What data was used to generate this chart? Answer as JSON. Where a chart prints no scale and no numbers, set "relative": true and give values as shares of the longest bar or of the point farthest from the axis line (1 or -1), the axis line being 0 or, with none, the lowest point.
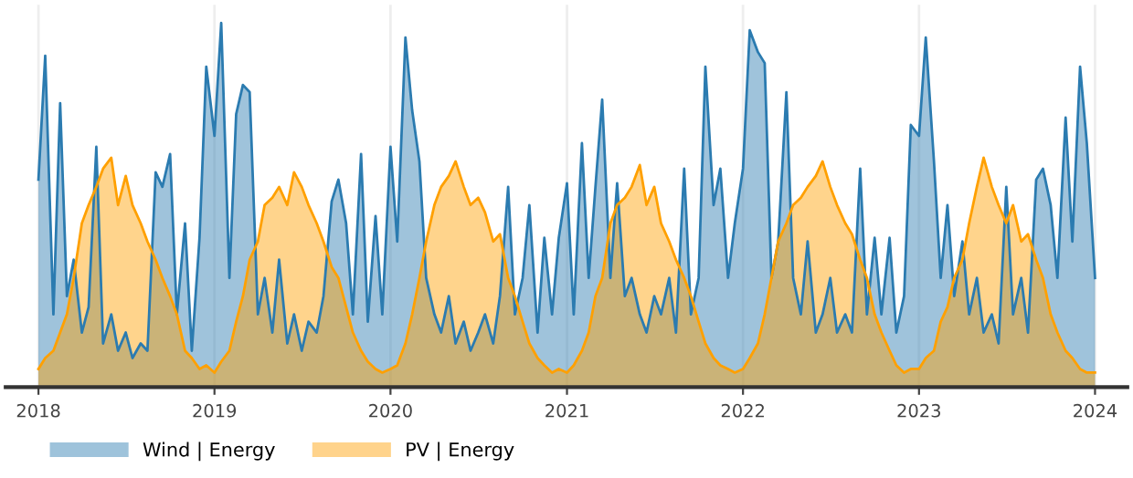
{
  "chart_data": {
    "type": "area",
    "relative": true,
    "x": [
      "2018-01-01",
      "2018-01-15",
      "2018-02-01",
      "2018-02-15",
      "2018-03-01",
      "2018-03-15",
      "2018-04-01",
      "2018-04-15",
      "2018-05-01",
      "2018-05-15",
      "2018-06-01",
      "2018-06-15",
      "2018-07-01",
      "2018-07-15",
      "2018-08-01",
      "2018-08-15",
      "2018-09-01",
      "2018-09-15",
      "2018-10-01",
      "2018-10-15",
      "2018-11-01",
      "2018-11-15",
      "2018-12-01",
      "2018-12-15",
      "2019-01-01",
      "2019-01-15",
      "2019-02-01",
      "2019-02-15",
      "2019-03-01",
      "2019-03-15",
      "2019-04-01",
      "2019-04-15",
      "2019-05-01",
      "2019-05-15",
      "2019-06-01",
      "2019-06-15",
      "2019-07-01",
      "2019-07-15",
      "2019-08-01",
      "2019-08-15",
      "2019-09-01",
      "2019-09-15",
      "2019-10-01",
      "2019-10-15",
      "2019-11-01",
      "2019-11-15",
      "2019-12-01",
      "2019-12-15",
      "2020-01-01",
      "2020-01-15",
      "2020-02-01",
      "2020-02-15",
      "2020-03-01",
      "2020-03-15",
      "2020-04-01",
      "2020-04-15",
      "2020-05-01",
      "2020-05-15",
      "2020-06-01",
      "2020-06-15",
      "2020-07-01",
      "2020-07-15",
      "2020-08-01",
      "2020-08-15",
      "2020-09-01",
      "2020-09-15",
      "2020-10-01",
      "2020-10-15",
      "2020-11-01",
      "2020-11-15",
      "2020-12-01",
      "2020-12-15",
      "2021-01-01",
      "2021-01-15",
      "2021-02-01",
      "2021-02-15",
      "2021-03-01",
      "2021-03-15",
      "2021-04-01",
      "2021-04-15",
      "2021-05-01",
      "2021-05-15",
      "2021-06-01",
      "2021-06-15",
      "2021-07-01",
      "2021-07-15",
      "2021-08-01",
      "2021-08-15",
      "2021-09-01",
      "2021-09-15",
      "2021-10-01",
      "2021-10-15",
      "2021-11-01",
      "2021-11-15",
      "2021-12-01",
      "2021-12-15",
      "2022-01-01",
      "2022-01-15",
      "2022-02-01",
      "2022-02-15",
      "2022-03-01",
      "2022-03-15",
      "2022-04-01",
      "2022-04-15",
      "2022-05-01",
      "2022-05-15",
      "2022-06-01",
      "2022-06-15",
      "2022-07-01",
      "2022-07-15",
      "2022-08-01",
      "2022-08-15",
      "2022-09-01",
      "2022-09-15",
      "2022-10-01",
      "2022-10-15",
      "2022-11-01",
      "2022-11-15",
      "2022-12-01",
      "2022-12-15",
      "2023-01-01",
      "2023-01-15",
      "2023-02-01",
      "2023-02-15",
      "2023-03-01",
      "2023-03-15",
      "2023-04-01",
      "2023-04-15",
      "2023-05-01",
      "2023-05-15",
      "2023-06-01",
      "2023-06-15",
      "2023-07-01",
      "2023-07-15",
      "2023-08-01",
      "2023-08-15",
      "2023-09-01",
      "2023-09-15",
      "2023-10-01",
      "2023-10-15",
      "2023-11-01",
      "2023-11-15",
      "2023-12-01",
      "2023-12-15",
      "2024-01-01"
    ],
    "series": [
      {
        "name": "Wind | Energy",
        "color": "#2b7bb0",
        "values": [
          0.57,
          0.91,
          0.2,
          0.78,
          0.25,
          0.35,
          0.15,
          0.22,
          0.66,
          0.12,
          0.2,
          0.1,
          0.15,
          0.08,
          0.12,
          0.1,
          0.59,
          0.55,
          0.64,
          0.2,
          0.45,
          0.1,
          0.41,
          0.88,
          0.69,
          1.0,
          0.3,
          0.75,
          0.83,
          0.81,
          0.2,
          0.3,
          0.15,
          0.35,
          0.12,
          0.2,
          0.1,
          0.18,
          0.15,
          0.25,
          0.51,
          0.57,
          0.45,
          0.2,
          0.64,
          0.18,
          0.47,
          0.2,
          0.66,
          0.4,
          0.96,
          0.76,
          0.62,
          0.3,
          0.2,
          0.15,
          0.25,
          0.12,
          0.18,
          0.1,
          0.15,
          0.2,
          0.12,
          0.25,
          0.55,
          0.2,
          0.3,
          0.5,
          0.15,
          0.41,
          0.2,
          0.41,
          0.56,
          0.2,
          0.67,
          0.3,
          0.55,
          0.79,
          0.3,
          0.56,
          0.25,
          0.3,
          0.2,
          0.15,
          0.25,
          0.2,
          0.3,
          0.15,
          0.6,
          0.2,
          0.3,
          0.88,
          0.5,
          0.6,
          0.3,
          0.45,
          0.6,
          0.98,
          0.92,
          0.89,
          0.3,
          0.4,
          0.81,
          0.3,
          0.2,
          0.4,
          0.15,
          0.2,
          0.3,
          0.15,
          0.2,
          0.15,
          0.6,
          0.2,
          0.41,
          0.2,
          0.41,
          0.15,
          0.25,
          0.72,
          0.69,
          0.96,
          0.62,
          0.3,
          0.5,
          0.25,
          0.4,
          0.2,
          0.3,
          0.15,
          0.2,
          0.12,
          0.55,
          0.2,
          0.3,
          0.15,
          0.57,
          0.6,
          0.5,
          0.3,
          0.74,
          0.4,
          0.88,
          0.67,
          0.3
        ]
      },
      {
        "name": "PV | Energy",
        "color": "#ffa000",
        "values": [
          0.05,
          0.08,
          0.1,
          0.15,
          0.2,
          0.3,
          0.45,
          0.5,
          0.55,
          0.6,
          0.63,
          0.5,
          0.58,
          0.5,
          0.45,
          0.4,
          0.35,
          0.3,
          0.25,
          0.2,
          0.1,
          0.08,
          0.05,
          0.06,
          0.04,
          0.07,
          0.1,
          0.18,
          0.25,
          0.35,
          0.4,
          0.5,
          0.52,
          0.55,
          0.5,
          0.59,
          0.55,
          0.5,
          0.45,
          0.4,
          0.33,
          0.3,
          0.22,
          0.15,
          0.1,
          0.07,
          0.05,
          0.04,
          0.05,
          0.06,
          0.12,
          0.2,
          0.3,
          0.4,
          0.5,
          0.55,
          0.58,
          0.62,
          0.55,
          0.5,
          0.52,
          0.48,
          0.4,
          0.42,
          0.3,
          0.25,
          0.18,
          0.12,
          0.08,
          0.06,
          0.04,
          0.05,
          0.04,
          0.06,
          0.1,
          0.15,
          0.25,
          0.3,
          0.45,
          0.5,
          0.52,
          0.55,
          0.61,
          0.5,
          0.55,
          0.45,
          0.4,
          0.35,
          0.3,
          0.25,
          0.18,
          0.12,
          0.08,
          0.06,
          0.05,
          0.04,
          0.05,
          0.08,
          0.12,
          0.2,
          0.3,
          0.4,
          0.45,
          0.5,
          0.52,
          0.55,
          0.58,
          0.62,
          0.55,
          0.5,
          0.45,
          0.42,
          0.35,
          0.3,
          0.2,
          0.15,
          0.1,
          0.06,
          0.04,
          0.05,
          0.05,
          0.08,
          0.1,
          0.18,
          0.22,
          0.3,
          0.35,
          0.45,
          0.55,
          0.63,
          0.55,
          0.5,
          0.45,
          0.5,
          0.4,
          0.42,
          0.35,
          0.3,
          0.2,
          0.15,
          0.1,
          0.08,
          0.05,
          0.04,
          0.04
        ]
      }
    ],
    "xlim": [
      "2017-10-25",
      "2024-03-08"
    ],
    "xticks": [
      {
        "value": "2018-01-01",
        "label": "2018"
      },
      {
        "value": "2019-01-01",
        "label": "2019"
      },
      {
        "value": "2020-01-01",
        "label": "2020"
      },
      {
        "value": "2021-01-01",
        "label": "2021"
      },
      {
        "value": "2022-01-01",
        "label": "2022"
      },
      {
        "value": "2023-01-01",
        "label": "2023"
      },
      {
        "value": "2024-01-01",
        "label": "2024"
      }
    ],
    "grid": true,
    "legend": "bottom left"
  }
}
